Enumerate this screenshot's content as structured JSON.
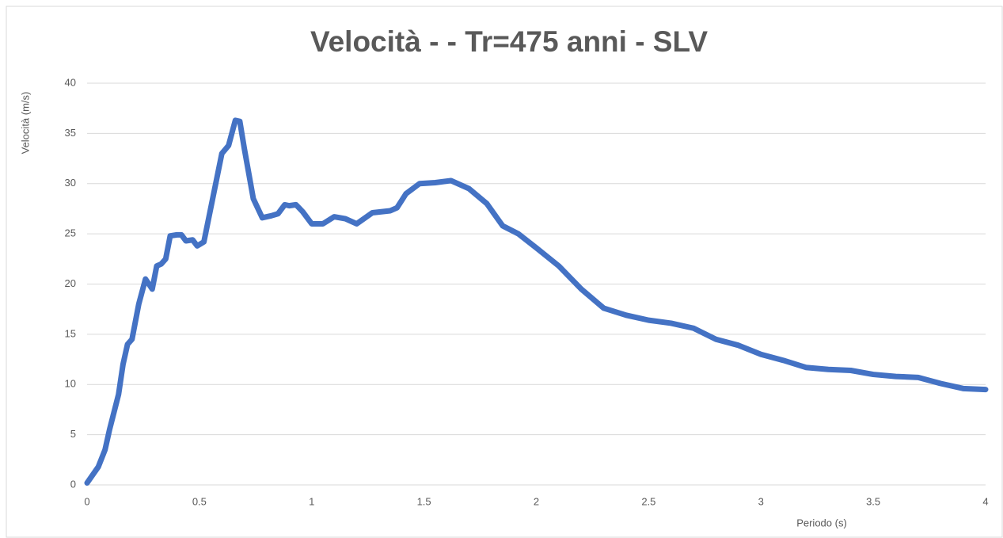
{
  "chart_data": {
    "type": "line",
    "title": "Velocità - - Tr=475 anni - SLV",
    "xlabel": "Periodo (s)",
    "ylabel": "Velocità (m/s)",
    "x": [
      0,
      0.05,
      0.08,
      0.1,
      0.14,
      0.16,
      0.18,
      0.2,
      0.23,
      0.26,
      0.29,
      0.31,
      0.33,
      0.35,
      0.37,
      0.4,
      0.42,
      0.44,
      0.47,
      0.49,
      0.52,
      0.55,
      0.6,
      0.63,
      0.66,
      0.68,
      0.7,
      0.74,
      0.78,
      0.82,
      0.85,
      0.88,
      0.9,
      0.93,
      0.96,
      1.0,
      1.05,
      1.1,
      1.15,
      1.2,
      1.27,
      1.35,
      1.38,
      1.42,
      1.48,
      1.55,
      1.62,
      1.7,
      1.78,
      1.85,
      1.92,
      2.0,
      2.1,
      2.2,
      2.3,
      2.4,
      2.5,
      2.6,
      2.7,
      2.8,
      2.9,
      3.0,
      3.1,
      3.2,
      3.3,
      3.4,
      3.5,
      3.6,
      3.7,
      3.8,
      3.9,
      4.0
    ],
    "series": [
      {
        "name": "Velocità",
        "color": "#4472c4",
        "values": [
          0.2,
          1.8,
          3.5,
          5.5,
          9,
          12,
          14,
          14.5,
          18,
          20.5,
          19.5,
          21.8,
          22,
          22.5,
          24.8,
          24.9,
          24.9,
          24.3,
          24.4,
          23.8,
          24.2,
          27.5,
          33,
          33.8,
          36.3,
          36.2,
          33.5,
          28.5,
          26.6,
          26.8,
          27,
          27.9,
          27.8,
          27.9,
          27.2,
          26,
          26,
          26.7,
          26.5,
          26,
          27.1,
          27.3,
          27.6,
          29,
          30,
          30.1,
          30.3,
          29.5,
          28,
          25.8,
          25,
          23.6,
          21.8,
          19.5,
          17.6,
          16.9,
          16.4,
          16.1,
          15.6,
          14.5,
          13.9,
          13,
          12.4,
          11.7,
          11.5,
          11.4,
          11,
          10.8,
          10.7,
          10.1,
          9.6,
          9.5
        ]
      }
    ],
    "xlim": [
      0,
      4
    ],
    "xticks": [
      0,
      0.5,
      1,
      1.5,
      2,
      2.5,
      3,
      3.5,
      4
    ],
    "ylim": [
      0,
      40
    ],
    "yticks": [
      0,
      5,
      10,
      15,
      20,
      25,
      30,
      35,
      40
    ],
    "grid": true
  }
}
